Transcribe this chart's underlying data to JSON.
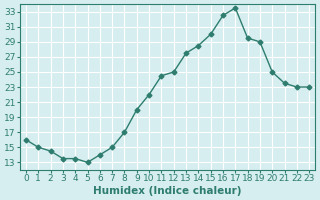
{
  "x": [
    0,
    1,
    2,
    3,
    4,
    5,
    6,
    7,
    8,
    9,
    10,
    11,
    12,
    13,
    14,
    15,
    16,
    17,
    18,
    19,
    20,
    21,
    22,
    23
  ],
  "y": [
    16,
    15,
    14.5,
    13.5,
    13.5,
    13,
    14,
    15,
    17,
    20,
    22,
    24.5,
    25,
    27.5,
    28.5,
    30,
    32.5,
    33.5,
    29.5,
    29,
    25,
    23.5,
    23,
    23
  ],
  "xlabel": "Humidex (Indice chaleur)",
  "ylabel": "",
  "xlim": [
    -0.5,
    23.5
  ],
  "ylim": [
    12,
    34
  ],
  "yticks": [
    13,
    15,
    17,
    19,
    21,
    23,
    25,
    27,
    29,
    31,
    33
  ],
  "xticks": [
    0,
    1,
    2,
    3,
    4,
    5,
    6,
    7,
    8,
    9,
    10,
    11,
    12,
    13,
    14,
    15,
    16,
    17,
    18,
    19,
    20,
    21,
    22,
    23
  ],
  "line_color": "#2e7d6e",
  "marker_color": "#2e7d6e",
  "bg_color": "#d6eef0",
  "grid_color": "#ffffff",
  "tick_color": "#2e7d6e",
  "label_color": "#2e7d6e",
  "xlabel_fontsize": 7.5,
  "tick_fontsize": 6.5
}
